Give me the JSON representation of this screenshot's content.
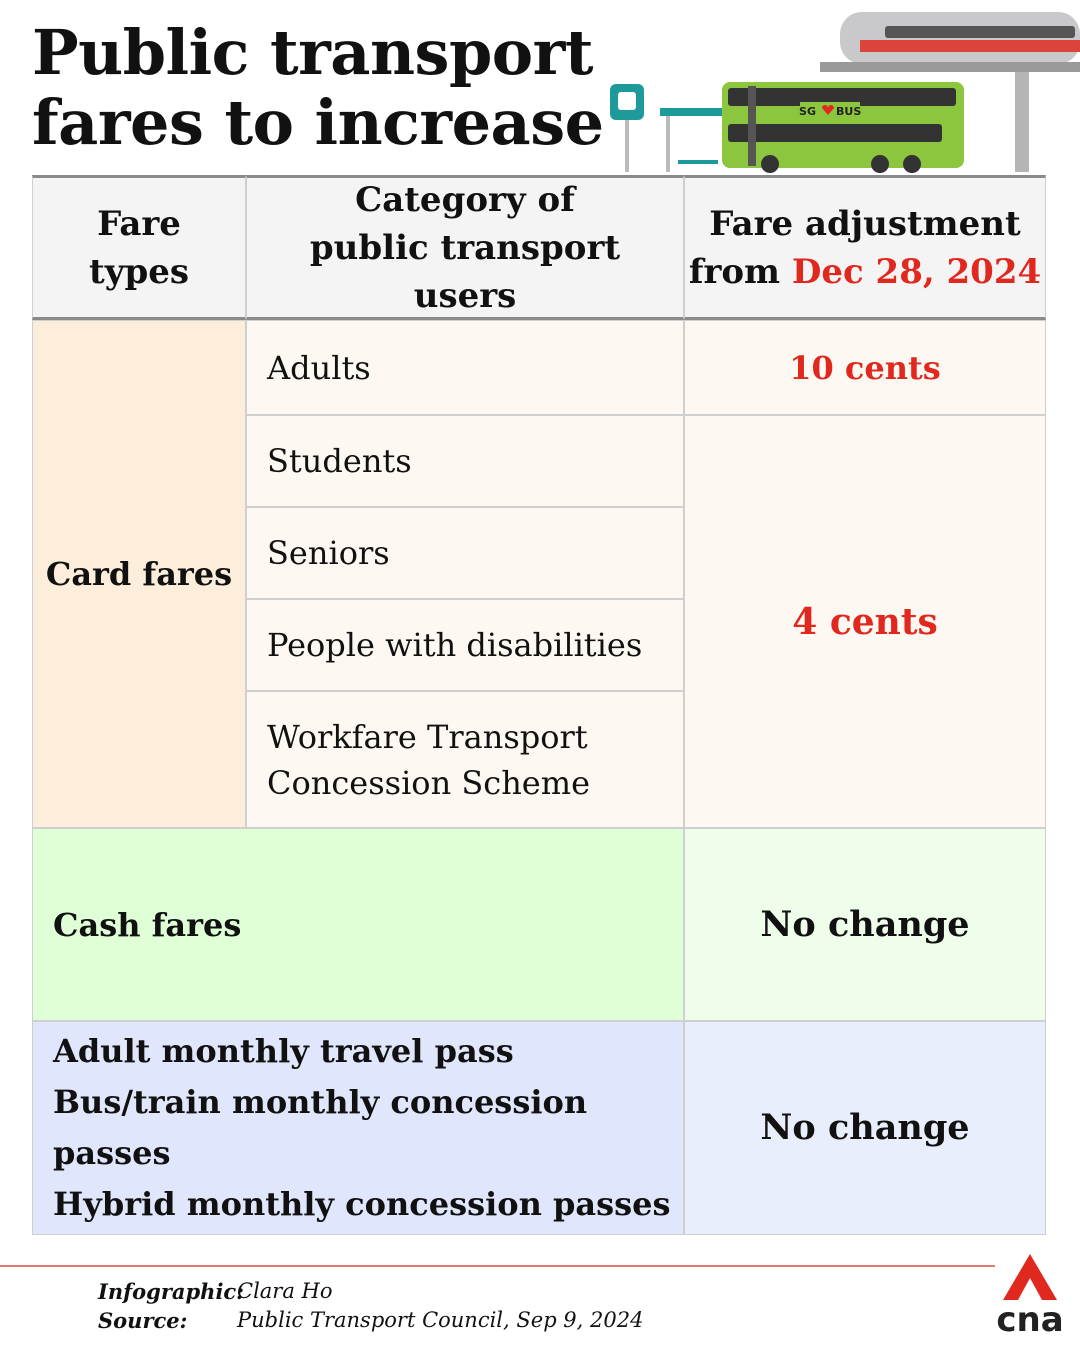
{
  "header": {
    "title_lines": [
      "Public transport",
      "fares to increase"
    ],
    "bus_logo": [
      "SG",
      "BUS"
    ]
  },
  "table": {
    "headers": [
      "Fare types",
      "Category of public transport users",
      {
        "text": "Fare adjustment from",
        "date": "Dec 28, 2024"
      }
    ],
    "card_fares": {
      "label": "Card fares",
      "categories": [
        "Adults",
        "Students",
        "Seniors",
        "People with disabilities",
        "Workfare Transport Concession Scheme"
      ],
      "adjustments": [
        "10 cents",
        "4 cents"
      ]
    },
    "cash_fares": {
      "label": "Cash fares",
      "adjustment": "No change"
    },
    "passes": {
      "labels": [
        "Adult monthly travel pass",
        "Bus/train monthly concession passes",
        "Hybrid monthly concession passes"
      ],
      "adjustment": "No change"
    }
  },
  "footer": {
    "credits": [
      {
        "label": "Infographic:",
        "value": "Clara Ho"
      },
      {
        "label": "Source:",
        "value": "Public Transport Council, Sep 9, 2024"
      }
    ],
    "logo": "cna"
  }
}
